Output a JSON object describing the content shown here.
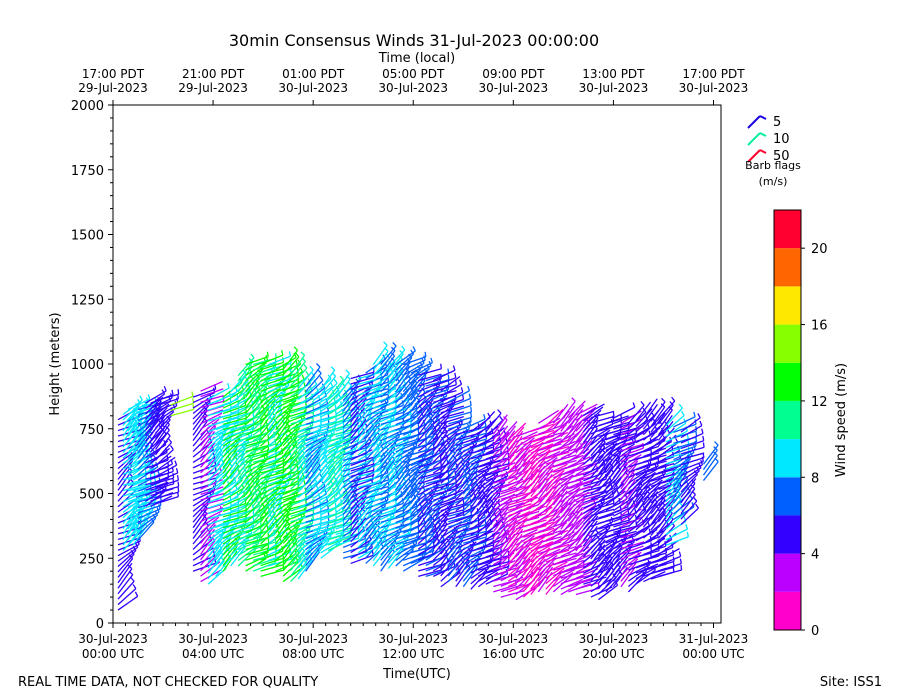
{
  "title": "30min Consensus Winds 31-Jul-2023 00:00:00",
  "footer_left": "REAL TIME DATA, NOT CHECKED FOR QUALITY",
  "footer_right": "Site: ISS1",
  "legend": {
    "title_line1": "Barb flags",
    "title_line2": "(m/s)",
    "entries": [
      {
        "label": "5",
        "color": "#1a00e0"
      },
      {
        "label": "10",
        "color": "#00f0a0"
      },
      {
        "label": "50",
        "color": "#ff0030"
      }
    ]
  },
  "colorbar": {
    "label": "Wind speed (m/s)",
    "bounds": [
      0,
      2,
      4,
      6,
      8,
      10,
      12,
      14,
      16,
      18,
      20,
      22
    ],
    "colors": [
      "#ff00cc",
      "#bb00ff",
      "#3300ff",
      "#0060ff",
      "#00e8ff",
      "#00ff90",
      "#00ff00",
      "#88ff00",
      "#ffe800",
      "#ff6600",
      "#ff0030"
    ],
    "tick_labels": [
      "0",
      "4",
      "8",
      "12",
      "16",
      "20"
    ],
    "tick_values": [
      0,
      4,
      8,
      12,
      16,
      20
    ]
  },
  "chart_data": {
    "type": "wind-barb-profile",
    "title": "30min Consensus Winds 31-Jul-2023 00:00:00",
    "xlabel": "Time(UTC)",
    "ylabel": "Height (meters)",
    "top_xlabel": "Time (local)",
    "xlim_hours_since_2023-07-30T00UTC": [
      0,
      24.3
    ],
    "ylim": [
      0,
      2000
    ],
    "yticks": [
      0,
      250,
      500,
      750,
      1000,
      1250,
      1500,
      1750,
      2000
    ],
    "xticks": [
      {
        "hour": 0,
        "line1": "30-Jul-2023",
        "line2": "00:00 UTC"
      },
      {
        "hour": 4,
        "line1": "30-Jul-2023",
        "line2": "04:00 UTC"
      },
      {
        "hour": 8,
        "line1": "30-Jul-2023",
        "line2": "08:00 UTC"
      },
      {
        "hour": 12,
        "line1": "30-Jul-2023",
        "line2": "12:00 UTC"
      },
      {
        "hour": 16,
        "line1": "30-Jul-2023",
        "line2": "16:00 UTC"
      },
      {
        "hour": 20,
        "line1": "30-Jul-2023",
        "line2": "20:00 UTC"
      },
      {
        "hour": 24,
        "line1": "31-Jul-2023",
        "line2": "00:00 UTC"
      }
    ],
    "top_xticks": [
      {
        "hour": 0,
        "line1": "17:00 PDT",
        "line2": "29-Jul-2023"
      },
      {
        "hour": 4,
        "line1": "21:00 PDT",
        "line2": "29-Jul-2023"
      },
      {
        "hour": 8,
        "line1": "01:00 PDT",
        "line2": "30-Jul-2023"
      },
      {
        "hour": 12,
        "line1": "05:00 PDT",
        "line2": "30-Jul-2023"
      },
      {
        "hour": 16,
        "line1": "09:00 PDT",
        "line2": "30-Jul-2023"
      },
      {
        "hour": 20,
        "line1": "13:00 PDT",
        "line2": "30-Jul-2023"
      },
      {
        "hour": 24,
        "line1": "17:00 PDT",
        "line2": "30-Jul-2023"
      }
    ],
    "profiles": [
      {
        "hour": 0.2,
        "hmin": 50,
        "hmax": 800,
        "speed": 5
      },
      {
        "hour": 0.4,
        "hmin": 280,
        "hmax": 820,
        "speed": 8
      },
      {
        "hour": 0.6,
        "hmin": 300,
        "hmax": 840,
        "speed": 8
      },
      {
        "hour": 0.8,
        "hmin": 300,
        "hmax": 840,
        "speed": 9
      },
      {
        "hour": 1.0,
        "hmin": 320,
        "hmax": 840,
        "speed": 6
      },
      {
        "hour": 1.3,
        "hmin": 450,
        "hmax": 860,
        "speed": 5
      },
      {
        "hour": 1.5,
        "hmin": 450,
        "hmax": 860,
        "speed": 4
      },
      {
        "hour": 1.7,
        "hmin": 460,
        "hmax": 860,
        "speed": 5
      },
      {
        "hour": 2.3,
        "hmin": 800,
        "hmax": 850,
        "speed": 15
      },
      {
        "hour": 3.2,
        "hmin": 200,
        "hmax": 880,
        "speed": 5
      },
      {
        "hour": 3.5,
        "hmin": 160,
        "hmax": 900,
        "speed": 3
      },
      {
        "hour": 3.8,
        "hmin": 150,
        "hmax": 880,
        "speed": 9
      },
      {
        "hour": 4.1,
        "hmin": 180,
        "hmax": 870,
        "speed": 8
      },
      {
        "hour": 4.4,
        "hmin": 200,
        "hmax": 880,
        "speed": 12
      },
      {
        "hour": 4.7,
        "hmin": 220,
        "hmax": 900,
        "speed": 8
      },
      {
        "hour": 5.0,
        "hmin": 220,
        "hmax": 960,
        "speed": 10
      },
      {
        "hour": 5.3,
        "hmin": 200,
        "hmax": 1000,
        "speed": 13
      },
      {
        "hour": 5.6,
        "hmin": 200,
        "hmax": 1000,
        "speed": 11
      },
      {
        "hour": 5.9,
        "hmin": 180,
        "hmax": 1000,
        "speed": 12
      },
      {
        "hour": 6.2,
        "hmin": 220,
        "hmax": 1000,
        "speed": 9
      },
      {
        "hour": 6.5,
        "hmin": 200,
        "hmax": 990,
        "speed": 13
      },
      {
        "hour": 6.8,
        "hmin": 160,
        "hmax": 980,
        "speed": 12
      },
      {
        "hour": 7.1,
        "hmin": 160,
        "hmax": 960,
        "speed": 11
      },
      {
        "hour": 7.4,
        "hmin": 170,
        "hmax": 920,
        "speed": 8
      },
      {
        "hour": 7.7,
        "hmin": 200,
        "hmax": 920,
        "speed": 6
      },
      {
        "hour": 8.0,
        "hmin": 250,
        "hmax": 900,
        "speed": 9
      },
      {
        "hour": 8.3,
        "hmin": 250,
        "hmax": 910,
        "speed": 8
      },
      {
        "hour": 8.6,
        "hmin": 280,
        "hmax": 880,
        "speed": 10
      },
      {
        "hour": 8.9,
        "hmin": 300,
        "hmax": 900,
        "speed": 9
      },
      {
        "hour": 9.2,
        "hmin": 250,
        "hmax": 880,
        "speed": 6
      },
      {
        "hour": 9.5,
        "hmin": 230,
        "hmax": 960,
        "speed": 5
      },
      {
        "hour": 9.8,
        "hmin": 250,
        "hmax": 960,
        "speed": 8
      },
      {
        "hour": 10.1,
        "hmin": 230,
        "hmax": 980,
        "speed": 6
      },
      {
        "hour": 10.4,
        "hmin": 220,
        "hmax": 1000,
        "speed": 8
      },
      {
        "hour": 10.7,
        "hmin": 200,
        "hmax": 1010,
        "speed": 7
      },
      {
        "hour": 11.0,
        "hmin": 210,
        "hmax": 1000,
        "speed": 8
      },
      {
        "hour": 11.3,
        "hmin": 220,
        "hmax": 1010,
        "speed": 7
      },
      {
        "hour": 11.6,
        "hmin": 200,
        "hmax": 1000,
        "speed": 6
      },
      {
        "hour": 11.9,
        "hmin": 230,
        "hmax": 980,
        "speed": 7
      },
      {
        "hour": 12.2,
        "hmin": 180,
        "hmax": 960,
        "speed": 5
      },
      {
        "hour": 12.5,
        "hmin": 180,
        "hmax": 950,
        "speed": 6
      },
      {
        "hour": 12.8,
        "hmin": 180,
        "hmax": 950,
        "speed": 5
      },
      {
        "hour": 13.1,
        "hmin": 140,
        "hmax": 900,
        "speed": 4
      },
      {
        "hour": 13.4,
        "hmin": 160,
        "hmax": 870,
        "speed": 6
      },
      {
        "hour": 13.7,
        "hmin": 140,
        "hmax": 740,
        "speed": 5
      },
      {
        "hour": 14.0,
        "hmin": 140,
        "hmax": 750,
        "speed": 6
      },
      {
        "hour": 14.3,
        "hmin": 130,
        "hmax": 750,
        "speed": 5
      },
      {
        "hour": 14.6,
        "hmin": 140,
        "hmax": 750,
        "speed": 4
      },
      {
        "hour": 14.9,
        "hmin": 150,
        "hmax": 740,
        "speed": 5
      },
      {
        "hour": 15.2,
        "hmin": 120,
        "hmax": 740,
        "speed": 3
      },
      {
        "hour": 15.5,
        "hmin": 100,
        "hmax": 720,
        "speed": 2
      },
      {
        "hour": 15.8,
        "hmin": 120,
        "hmax": 720,
        "speed": 1
      },
      {
        "hour": 16.1,
        "hmin": 90,
        "hmax": 740,
        "speed": 2
      },
      {
        "hour": 16.4,
        "hmin": 100,
        "hmax": 720,
        "speed": 1
      },
      {
        "hour": 16.7,
        "hmin": 110,
        "hmax": 760,
        "speed": 1
      },
      {
        "hour": 17.0,
        "hmin": 120,
        "hmax": 780,
        "speed": 2
      },
      {
        "hour": 17.3,
        "hmin": 110,
        "hmax": 780,
        "speed": 1
      },
      {
        "hour": 17.6,
        "hmin": 120,
        "hmax": 780,
        "speed": 2
      },
      {
        "hour": 17.9,
        "hmin": 110,
        "hmax": 790,
        "speed": 3
      },
      {
        "hour": 18.2,
        "hmin": 120,
        "hmax": 800,
        "speed": 2
      },
      {
        "hour": 18.5,
        "hmin": 110,
        "hmax": 810,
        "speed": 3
      },
      {
        "hour": 18.8,
        "hmin": 150,
        "hmax": 820,
        "speed": 4
      },
      {
        "hour": 19.1,
        "hmin": 100,
        "hmax": 800,
        "speed": 4
      },
      {
        "hour": 19.4,
        "hmin": 90,
        "hmax": 780,
        "speed": 5
      },
      {
        "hour": 19.7,
        "hmin": 120,
        "hmax": 780,
        "speed": 4
      },
      {
        "hour": 20.0,
        "hmin": 140,
        "hmax": 800,
        "speed": 4
      },
      {
        "hour": 20.3,
        "hmin": 140,
        "hmax": 780,
        "speed": 3
      },
      {
        "hour": 20.6,
        "hmin": 120,
        "hmax": 790,
        "speed": 5
      },
      {
        "hour": 20.9,
        "hmin": 150,
        "hmax": 800,
        "speed": 4
      },
      {
        "hour": 21.2,
        "hmin": 160,
        "hmax": 800,
        "speed": 4
      },
      {
        "hour": 21.5,
        "hmin": 170,
        "hmax": 780,
        "speed": 5
      },
      {
        "hour": 21.8,
        "hmin": 180,
        "hmax": 790,
        "speed": 4
      },
      {
        "hour": 22.1,
        "hmin": 300,
        "hmax": 780,
        "speed": 8
      },
      {
        "hour": 22.4,
        "hmin": 400,
        "hmax": 760,
        "speed": 6
      },
      {
        "hour": 22.7,
        "hmin": 380,
        "hmax": 750,
        "speed": 5
      },
      {
        "hour": 23.6,
        "hmin": 550,
        "hmax": 630,
        "speed": 6
      }
    ]
  }
}
